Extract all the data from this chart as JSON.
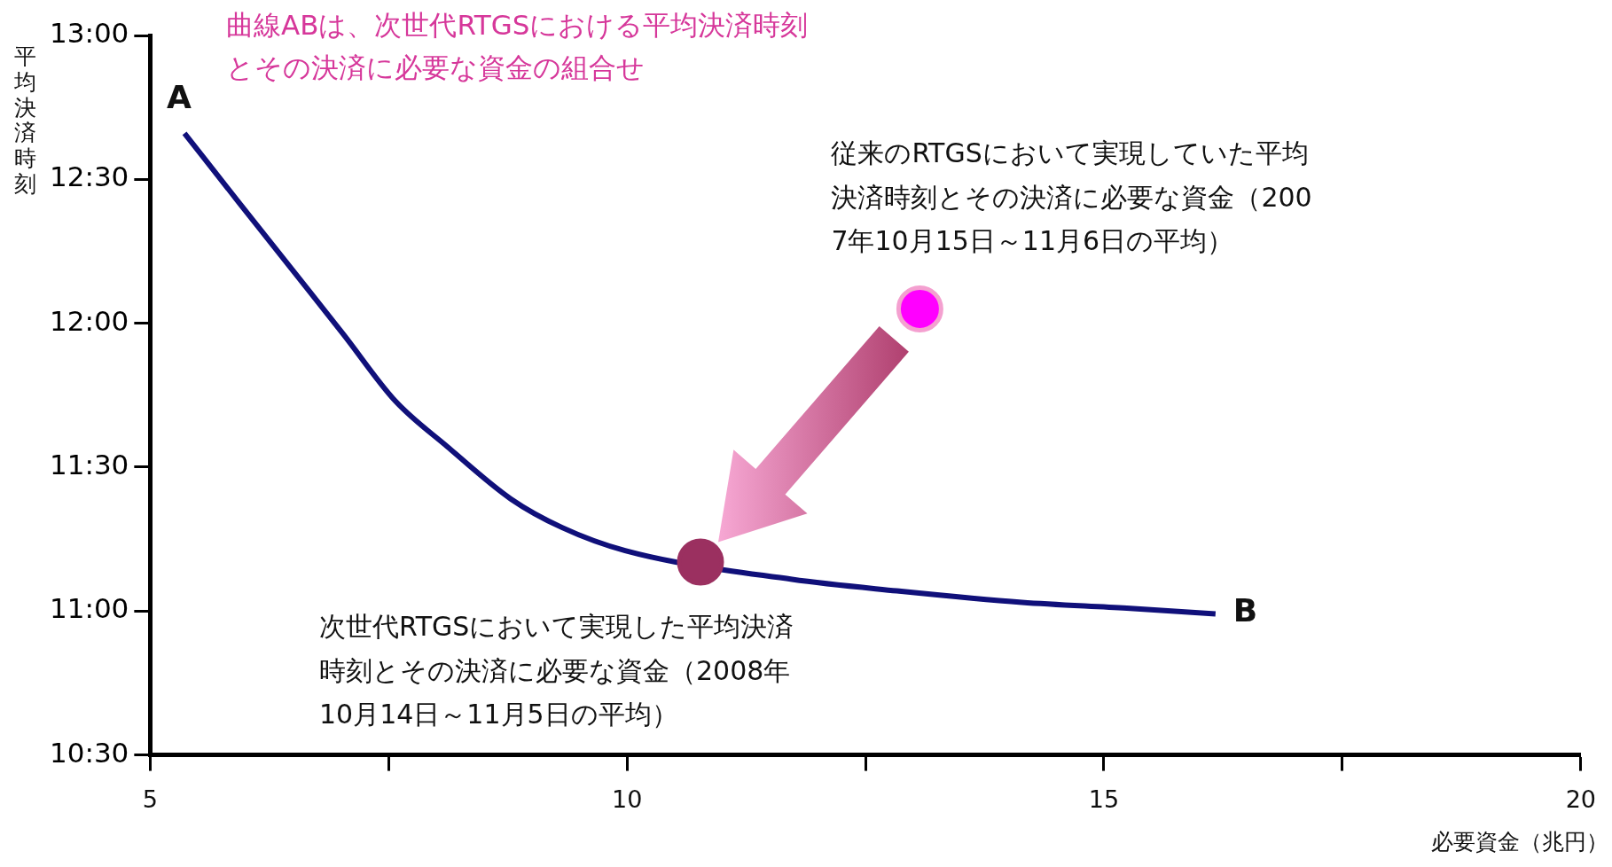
{
  "chart_data": {
    "type": "line",
    "title": "曲線ABは、次世代RTGSにおける平均決済時刻とその決済に必要な資金の組合せ",
    "xlabel": "必要資金（兆円）",
    "ylabel": "平均決済時刻",
    "xlim": [
      5,
      20
    ],
    "xticks": [
      5,
      {
        "value": 7.5,
        "label": null
      },
      10,
      {
        "value": 12.5,
        "label": null
      },
      15,
      {
        "value": 17.5,
        "label": null
      },
      20
    ],
    "ylim": [
      10.5,
      13
    ],
    "yticks": [
      {
        "value": 10.5,
        "label": "10:30"
      },
      {
        "value": 11,
        "label": "11:00"
      },
      {
        "value": 11.5,
        "label": "11:30"
      },
      {
        "value": 12,
        "label": "12:00"
      },
      {
        "value": 12.5,
        "label": "12:30"
      },
      {
        "value": 13,
        "label": "13:00"
      }
    ],
    "grid": false,
    "legend": false,
    "series": [
      {
        "color": "#10107a",
        "marker": "none",
        "x": [
          5.36,
          5.93,
          6.48,
          7.03,
          7.57,
          8.12,
          8.78,
          9.32,
          9.98,
          11.73,
          12.83,
          14.14,
          15.24,
          16.17
        ],
        "values": [
          12.66,
          12.42,
          12.19,
          11.96,
          11.73,
          11.57,
          11.39,
          11.29,
          11.21,
          11.11,
          11.07,
          11.03,
          11.01,
          10.99
        ]
      },
      {
        "type": "scatter",
        "color": "#9b3060",
        "marker": "circle",
        "x": [
          10.77
        ],
        "values": [
          11.17
        ]
      },
      {
        "type": "scatter",
        "color": "#ff00ff",
        "marker": "circle",
        "x": [
          13.07
        ],
        "values": [
          12.05
        ]
      }
    ],
    "annotations": [
      {
        "text": "A",
        "x": 5.36,
        "y": 12.66
      },
      {
        "text": "B",
        "x": 16.17,
        "y": 10.99
      },
      {
        "text": "従来のRTGSにおいて実現していた平均決済時刻とその決済に必要な資金（2007年10月15日～11月6日の平均）",
        "x": 13.07,
        "y": 12.05
      },
      {
        "text": "次世代RTGSにおいて実現した平均決済時刻とその決済に必要な資金（2008年10月14日～11月5日の平均）",
        "x": 10.77,
        "y": 11.17
      }
    ]
  }
}
